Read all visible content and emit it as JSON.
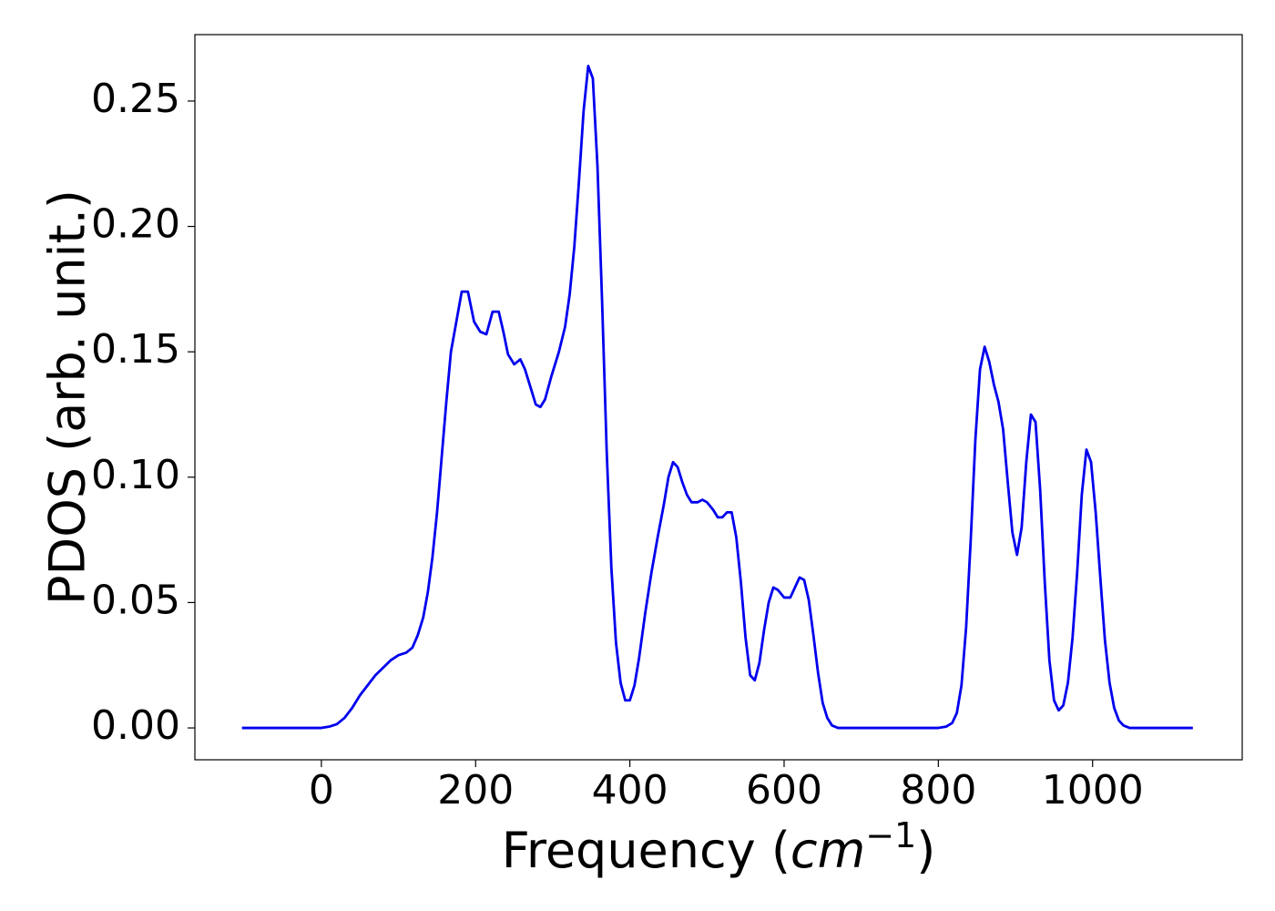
{
  "chart_data": {
    "type": "line",
    "ylabel": "PDOS (arb. unit.)",
    "xlabel": {
      "prefix": "Frequency (",
      "unit": "cm",
      "exponent": "−1",
      "suffix": ")"
    },
    "xlim": [
      -164,
      1194
    ],
    "ylim": [
      -0.0127,
      0.2765
    ],
    "xticks": [
      0,
      200,
      400,
      600,
      800,
      1000
    ],
    "yticks": [
      {
        "value": 0,
        "label": "0.00"
      },
      {
        "value": 0.05,
        "label": "0.05"
      },
      {
        "value": 0.1,
        "label": "0.10"
      },
      {
        "value": 0.15,
        "label": "0.15"
      },
      {
        "value": 0.2,
        "label": "0.20"
      },
      {
        "value": 0.25,
        "label": "0.25"
      }
    ],
    "grid": false,
    "series": [
      {
        "color": "#0000ee",
        "x": [
          -103,
          -50,
          0,
          10,
          20,
          30,
          40,
          50,
          60,
          70,
          80,
          90,
          100,
          110,
          118,
          125,
          132,
          138,
          144,
          150,
          156,
          162,
          168,
          175,
          182,
          190,
          198,
          206,
          214,
          222,
          230,
          236,
          242,
          250,
          258,
          264,
          272,
          278,
          284,
          290,
          298,
          308,
          316,
          322,
          328,
          334,
          340,
          346,
          352,
          358,
          364,
          370,
          376,
          382,
          388,
          394,
          400,
          406,
          412,
          420,
          428,
          436,
          444,
          450,
          456,
          462,
          468,
          474,
          480,
          488,
          494,
          500,
          508,
          514,
          520,
          526,
          532,
          538,
          544,
          550,
          556,
          562,
          568,
          574,
          580,
          586,
          592,
          600,
          608,
          614,
          620,
          626,
          632,
          638,
          644,
          650,
          656,
          662,
          670,
          700,
          800,
          810,
          818,
          824,
          830,
          836,
          842,
          848,
          854,
          860,
          866,
          872,
          878,
          884,
          890,
          896,
          902,
          908,
          914,
          920,
          926,
          932,
          938,
          944,
          950,
          956,
          962,
          968,
          974,
          980,
          986,
          992,
          998,
          1004,
          1010,
          1016,
          1022,
          1028,
          1034,
          1040,
          1048,
          1130
        ],
        "values": [
          0,
          0,
          0,
          0.0005,
          0.0015,
          0.004,
          0.008,
          0.013,
          0.017,
          0.021,
          0.024,
          0.027,
          0.029,
          0.03,
          0.032,
          0.037,
          0.044,
          0.054,
          0.068,
          0.086,
          0.108,
          0.13,
          0.15,
          0.162,
          0.174,
          0.174,
          0.162,
          0.158,
          0.157,
          0.166,
          0.166,
          0.158,
          0.149,
          0.145,
          0.147,
          0.143,
          0.135,
          0.129,
          0.128,
          0.131,
          0.14,
          0.15,
          0.16,
          0.173,
          0.192,
          0.218,
          0.246,
          0.264,
          0.259,
          0.224,
          0.17,
          0.11,
          0.064,
          0.034,
          0.018,
          0.011,
          0.011,
          0.017,
          0.028,
          0.046,
          0.062,
          0.076,
          0.089,
          0.1,
          0.106,
          0.104,
          0.098,
          0.093,
          0.09,
          0.09,
          0.091,
          0.09,
          0.087,
          0.084,
          0.084,
          0.086,
          0.086,
          0.076,
          0.058,
          0.036,
          0.021,
          0.019,
          0.026,
          0.039,
          0.05,
          0.056,
          0.055,
          0.052,
          0.052,
          0.056,
          0.06,
          0.059,
          0.051,
          0.037,
          0.022,
          0.01,
          0.004,
          0.001,
          0,
          0,
          0,
          0.0005,
          0.002,
          0.006,
          0.017,
          0.04,
          0.075,
          0.115,
          0.143,
          0.152,
          0.146,
          0.137,
          0.13,
          0.119,
          0.098,
          0.078,
          0.069,
          0.08,
          0.106,
          0.125,
          0.122,
          0.095,
          0.058,
          0.027,
          0.011,
          0.007,
          0.009,
          0.018,
          0.036,
          0.062,
          0.093,
          0.111,
          0.106,
          0.086,
          0.06,
          0.035,
          0.018,
          0.008,
          0.003,
          0.001,
          0,
          0
        ]
      }
    ]
  }
}
